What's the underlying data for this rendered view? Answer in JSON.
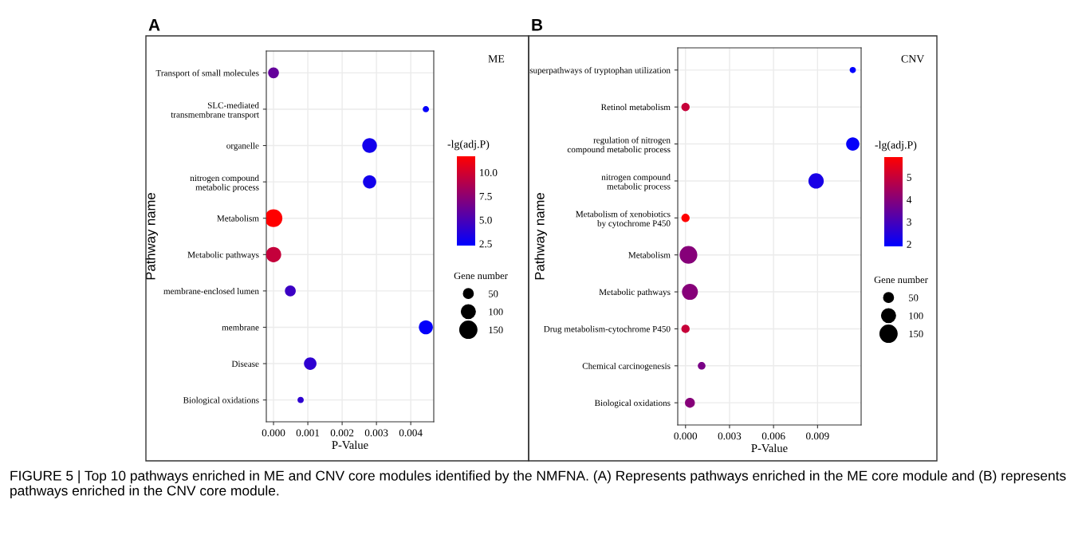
{
  "chart_data": [
    {
      "type": "bubble",
      "orientation": "horizontal",
      "title": "A",
      "xlabel": "P-Value",
      "ylabel": "Pathway name",
      "clabel": "-lg(adj.P)",
      "legend_title": "Gene number",
      "annotations": [
        "ME",
        "FIGURE 5 | Top 10 pathways enriched in ME and CNV core modules identified by the NMFNA. (A) Represents pathways enriched in the ME core module and (B) represents pathways enriched in the CNV core module."
      ],
      "categories": [
        "Transport of small molecules",
        "SLC-mediated\ntransmembrane transport",
        "organelle",
        "nitrogen compound\nmetabolic process",
        "Metabolism",
        "Metabolic pathways",
        "membrane-enclosed lumen",
        "membrane",
        "Disease",
        "Biological oxidations"
      ],
      "values": [
        0.0,
        0.00444,
        0.0028,
        0.0028,
        0.0,
        0.0,
        0.00049,
        0.00444,
        0.00107,
        0.00079
      ],
      "sizes": [
        60,
        20,
        110,
        90,
        160,
        120,
        60,
        100,
        80,
        20
      ],
      "cvalues": [
        6.0,
        2.5,
        3.0,
        3.0,
        11.7,
        9.5,
        4.5,
        2.5,
        4.0,
        4.0
      ],
      "size_legend": [
        50,
        100,
        150
      ],
      "xlim": [
        -0.00021,
        0.00467
      ],
      "xticks": [
        {
          "value": 0,
          "label": "0.000"
        },
        {
          "value": 0.001,
          "label": "0.001"
        },
        {
          "value": 0.002,
          "label": "0.002"
        },
        {
          "value": 0.003,
          "label": "0.003"
        },
        {
          "value": 0.004,
          "label": "0.004"
        }
      ],
      "clim": [
        2.3,
        11.7
      ],
      "cticks": [
        {
          "value": 2.5,
          "label": "2.5"
        },
        {
          "value": 5,
          "label": "5.0"
        },
        {
          "value": 7.5,
          "label": "7.5"
        },
        {
          "value": 10,
          "label": "10.0"
        }
      ],
      "grid": true
    },
    {
      "type": "bubble",
      "orientation": "horizontal",
      "title": "B",
      "xlabel": "P-Value",
      "ylabel": "Pathway name",
      "clabel": "-lg(adj.P)",
      "legend_title": "Gene number",
      "annotations": [
        "CNV"
      ],
      "categories": [
        "superpathways of tryptophan utilization",
        "Retinol metabolism",
        "regulation of nitrogen\ncompound metabolic process",
        "nitrogen compound\nmetabolic process",
        "Metabolism of xenobiotics\nby cytochrome P450",
        "Metabolism",
        "Metabolic pathways",
        "Drug metabolism-cytochrome P450",
        "Chemical carcinogenesis",
        "Biological oxidations"
      ],
      "values": [
        0.0114,
        0.0,
        0.0114,
        0.0089,
        0.0,
        0.0002,
        0.0003,
        0.0,
        0.0011,
        0.0003
      ],
      "sizes": [
        20,
        35,
        90,
        120,
        35,
        160,
        130,
        35,
        30,
        50
      ],
      "cvalues": [
        1.9,
        5.0,
        2.0,
        2.3,
        5.9,
        4.0,
        4.0,
        5.0,
        3.8,
        4.0
      ],
      "size_legend": [
        50,
        100,
        150
      ],
      "xlim": [
        -0.00053,
        0.01197
      ],
      "xticks": [
        {
          "value": 0,
          "label": "0.000"
        },
        {
          "value": 0.003,
          "label": "0.003"
        },
        {
          "value": 0.006,
          "label": "0.006"
        },
        {
          "value": 0.009,
          "label": "0.009"
        }
      ],
      "clim": [
        1.9,
        5.9
      ],
      "cticks": [
        2,
        3,
        4,
        5
      ],
      "grid": true
    }
  ]
}
